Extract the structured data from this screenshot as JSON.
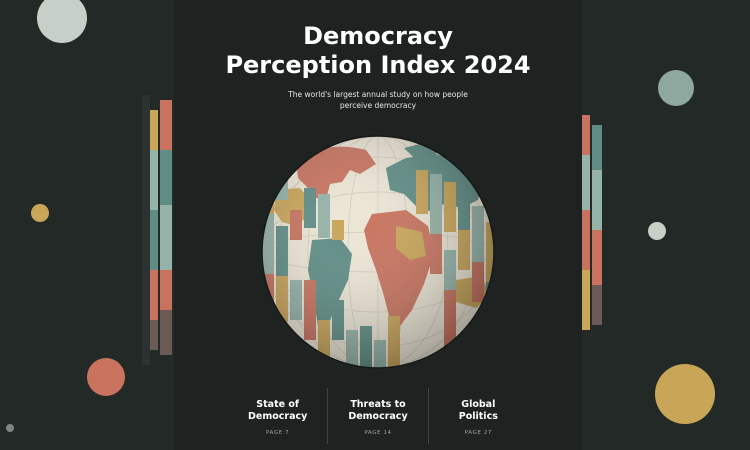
{
  "cover": {
    "title_line1": "Democracy",
    "title_line2": "Perception Index 2024",
    "subtitle": "The world's largest annual study on how people perceive democracy"
  },
  "sections": [
    {
      "label": "State of\nDemocracy",
      "page": "PAGE  7"
    },
    {
      "label": "Threats to\nDemocracy",
      "page": "PAGE  14"
    },
    {
      "label": "Global\nPolitics",
      "page": "PAGE  27"
    }
  ],
  "colors": {
    "background": "#232927",
    "cover": "#1e2321",
    "teal": "#5f8d86",
    "sage": "#95b3a8",
    "mustard": "#c9a558",
    "coral": "#c9735f",
    "cream": "#ece6d6"
  }
}
